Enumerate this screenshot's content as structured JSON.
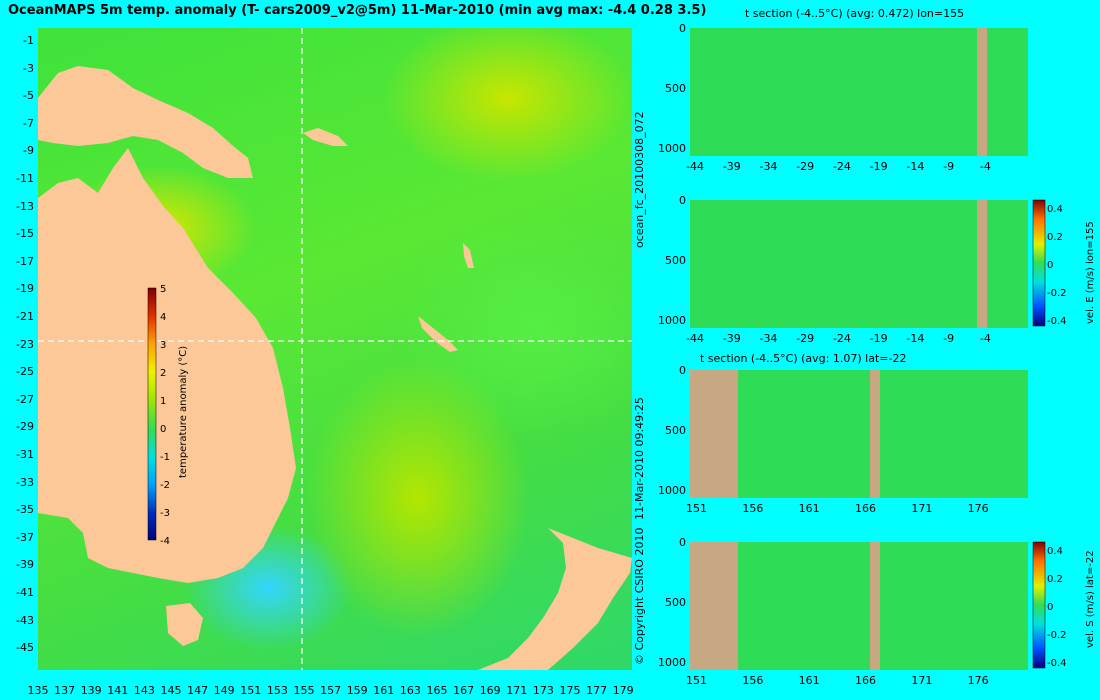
{
  "title": "OceanMAPS 5m temp. anomaly (T- cars2009_v2@5m) 11-Mar-2010 (min avg max: -4.4 0.28 3.5)",
  "side_labels": {
    "forecast_id": "ocean_fc_20100308_072",
    "timestamp": "11-Mar-2010 09:49:25",
    "copyright": "© Copyright CSIRO 2010"
  },
  "colors": {
    "land": "#fcc897",
    "background": "#00ffff",
    "section_land": "#c8a882"
  },
  "chart_data": [
    {
      "type": "heatmap",
      "title": "OceanMAPS 5m temp. anomaly (T- cars2009_v2@5m) 11-Mar-2010 (min avg max: -4.4 0.28 3.5)",
      "x_ticks": [
        "135",
        "137",
        "139",
        "141",
        "143",
        "145",
        "147",
        "149",
        "151",
        "153",
        "155",
        "157",
        "159",
        "161",
        "163",
        "165",
        "167",
        "169",
        "171",
        "173",
        "175",
        "177",
        "179"
      ],
      "y_ticks": [
        "-1",
        "-3",
        "-5",
        "-7",
        "-9",
        "-11",
        "-13",
        "-15",
        "-17",
        "-19",
        "-21",
        "-23",
        "-25",
        "-27",
        "-29",
        "-31",
        "-33",
        "-35",
        "-37",
        "-39",
        "-41",
        "-43",
        "-45"
      ],
      "xlim": [
        135,
        180
      ],
      "ylim": [
        -45,
        0
      ],
      "crosshair": {
        "lon": 155,
        "lat": -22
      },
      "colorbar": {
        "label": "temperature anomaly (°C)",
        "ticks": [
          "5",
          "4",
          "3",
          "2",
          "1",
          "0",
          "-1",
          "-2",
          "-3",
          "-4"
        ],
        "range": [
          -4,
          5
        ]
      }
    },
    {
      "type": "heatmap",
      "title": "t section (-4..5°C) (avg: 0.472) lon=155",
      "x_ticks": [
        "-44",
        "-39",
        "-34",
        "-29",
        "-24",
        "-19",
        "-14",
        "-9",
        "-4"
      ],
      "y_ticks": [
        "0",
        "500",
        "1000"
      ],
      "xlim": [
        -46,
        0
      ],
      "ylim": [
        1050,
        0
      ]
    },
    {
      "type": "heatmap",
      "title": "",
      "x_ticks": [
        "-44",
        "-39",
        "-34",
        "-29",
        "-24",
        "-19",
        "-14",
        "-9",
        "-4"
      ],
      "y_ticks": [
        "0",
        "500",
        "1000"
      ],
      "colorbar": {
        "label": "vel. E (m/s) lon=155",
        "ticks": [
          "0.4",
          "0.2",
          "0",
          "-0.2",
          "-0.4"
        ],
        "range": [
          -0.4,
          0.45
        ]
      }
    },
    {
      "type": "heatmap",
      "title": "t section (-4..5°C) (avg: 1.07) lat=-22",
      "x_ticks": [
        "151",
        "156",
        "161",
        "166",
        "171",
        "176"
      ],
      "y_ticks": [
        "0",
        "500",
        "1000"
      ],
      "xlim": [
        150,
        180
      ],
      "ylim": [
        1050,
        0
      ]
    },
    {
      "type": "heatmap",
      "title": "",
      "x_ticks": [
        "151",
        "156",
        "161",
        "166",
        "171",
        "176"
      ],
      "y_ticks": [
        "0",
        "500",
        "1000"
      ],
      "colorbar": {
        "label": "vel. S (m/s) lat=-22",
        "ticks": [
          "0.4",
          "0.2",
          "0",
          "-0.2",
          "-0.4"
        ],
        "range": [
          -0.4,
          0.45
        ]
      }
    }
  ]
}
